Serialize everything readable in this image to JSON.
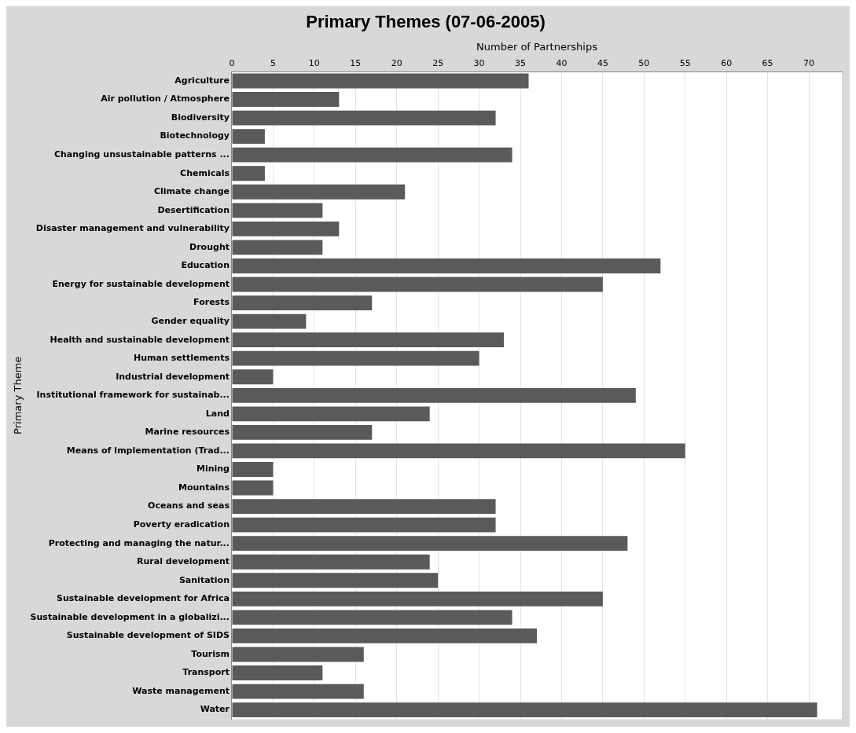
{
  "chart_data": {
    "type": "bar",
    "orientation": "horizontal",
    "title": "Primary Themes (07-06-2005)",
    "xlabel": "Number of Partnerships",
    "ylabel": "Primary Theme",
    "categories": [
      "Agriculture",
      "Air pollution / Atmosphere",
      "Biodiversity",
      "Biotechnology",
      "Changing unsustainable patterns ...",
      "Chemicals",
      "Climate change",
      "Desertification",
      "Disaster management and vulnerability",
      "Drought",
      "Education",
      "Energy for sustainable development",
      "Forests",
      "Gender equality",
      "Health and sustainable development",
      "Human settlements",
      "Industrial development",
      "Institutional framework for sustainab...",
      "Land",
      "Marine resources",
      "Means of Implementation (Trad...",
      "Mining",
      "Mountains",
      "Oceans and seas",
      "Poverty eradication",
      "Protecting and managing the natur...",
      "Rural development",
      "Sanitation",
      "Sustainable development for Africa",
      "Sustainable development in a globalizi...",
      "Sustainable development of SIDS",
      "Tourism",
      "Transport",
      "Waste management",
      "Water"
    ],
    "values": [
      36,
      13,
      32,
      4,
      34,
      4,
      21,
      11,
      13,
      11,
      52,
      45,
      17,
      9,
      33,
      30,
      5,
      49,
      24,
      17,
      55,
      5,
      5,
      32,
      32,
      48,
      24,
      25,
      45,
      34,
      37,
      16,
      11,
      16,
      71
    ],
    "color": "#5a5a5a",
    "xlim": [
      0,
      74
    ],
    "xticks": [
      0,
      5,
      10,
      15,
      20,
      25,
      30,
      35,
      40,
      45,
      50,
      55,
      60,
      65,
      70
    ],
    "grid": "x",
    "legend": false
  }
}
